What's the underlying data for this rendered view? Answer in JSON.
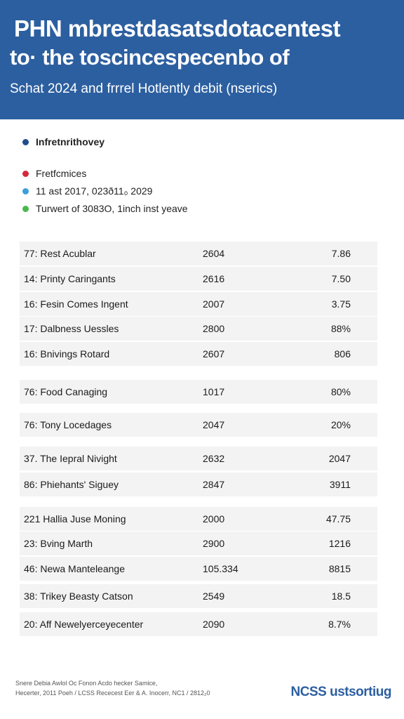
{
  "header": {
    "title_line1": "PHN mbrestdasatsdotacentest",
    "title_line2": "to· the toscincespecenbo of",
    "subtitle": "Schat 2024 and frrrel Hotlently debit (nserics)",
    "background": "#2c5fa0"
  },
  "legend": [
    {
      "label": "Infretnrithovey",
      "color": "#1f4e8c"
    },
    {
      "label": "Fretfcmices",
      "color": "#d62839"
    },
    {
      "label": "11 ast 2017, 023ð11₀ 2029",
      "color": "#3aa0dc"
    },
    {
      "label": "Turwert of 3083O, 1inch inst yeave",
      "color": "#49b84a"
    }
  ],
  "table": {
    "rows": [
      {
        "name": "77: Rest Acublar",
        "year": "2604",
        "value": "7.86"
      },
      {
        "name": "14: Printy Caringants",
        "year": "2616",
        "value": "7.50"
      },
      {
        "name": "16: Fesin Comes Ingent",
        "year": "2007",
        "value": "3.75"
      },
      {
        "name": "17: Dalbness Uessles",
        "year": "2800",
        "value": "88%"
      },
      {
        "name": "16: Bnivings Rotard",
        "year": "2607",
        "value": "806"
      },
      {
        "name": "76: Food Canaging",
        "year": "1017",
        "value": "80%"
      },
      {
        "name": "76: Tony Locedages",
        "year": "2047",
        "value": "20%"
      },
      {
        "name": "37. The Iepral Nivight",
        "year": "2632",
        "value": "2047"
      },
      {
        "name": "86: Phiehants' Siguey",
        "year": "2847",
        "value": "3911"
      },
      {
        "name": "221 Hallia Juse Moning",
        "year": "2000",
        "value": "47.75"
      },
      {
        "name": "23: Bving Marth",
        "year": "2900",
        "value": "1216"
      },
      {
        "name": "46: Newa Manteleange",
        "year": "105.334",
        "value": "8815"
      },
      {
        "name": "38: Trikey Beasty Catson",
        "year": "2549",
        "value": "18.5"
      },
      {
        "name": "20: Aff Newelyerceyecenter",
        "year": "2090",
        "value": "8.7%"
      }
    ]
  },
  "footer": {
    "note_line1": "Snere Debia Awlol Oc Fonon Acdo hecker Samice,",
    "note_line2": "Hecerter, 2011 Poeh / LCSS Rececest Eer & A. Inocerr, NC1 / 2812₂0",
    "logo": "NCSS ustsortiug"
  }
}
